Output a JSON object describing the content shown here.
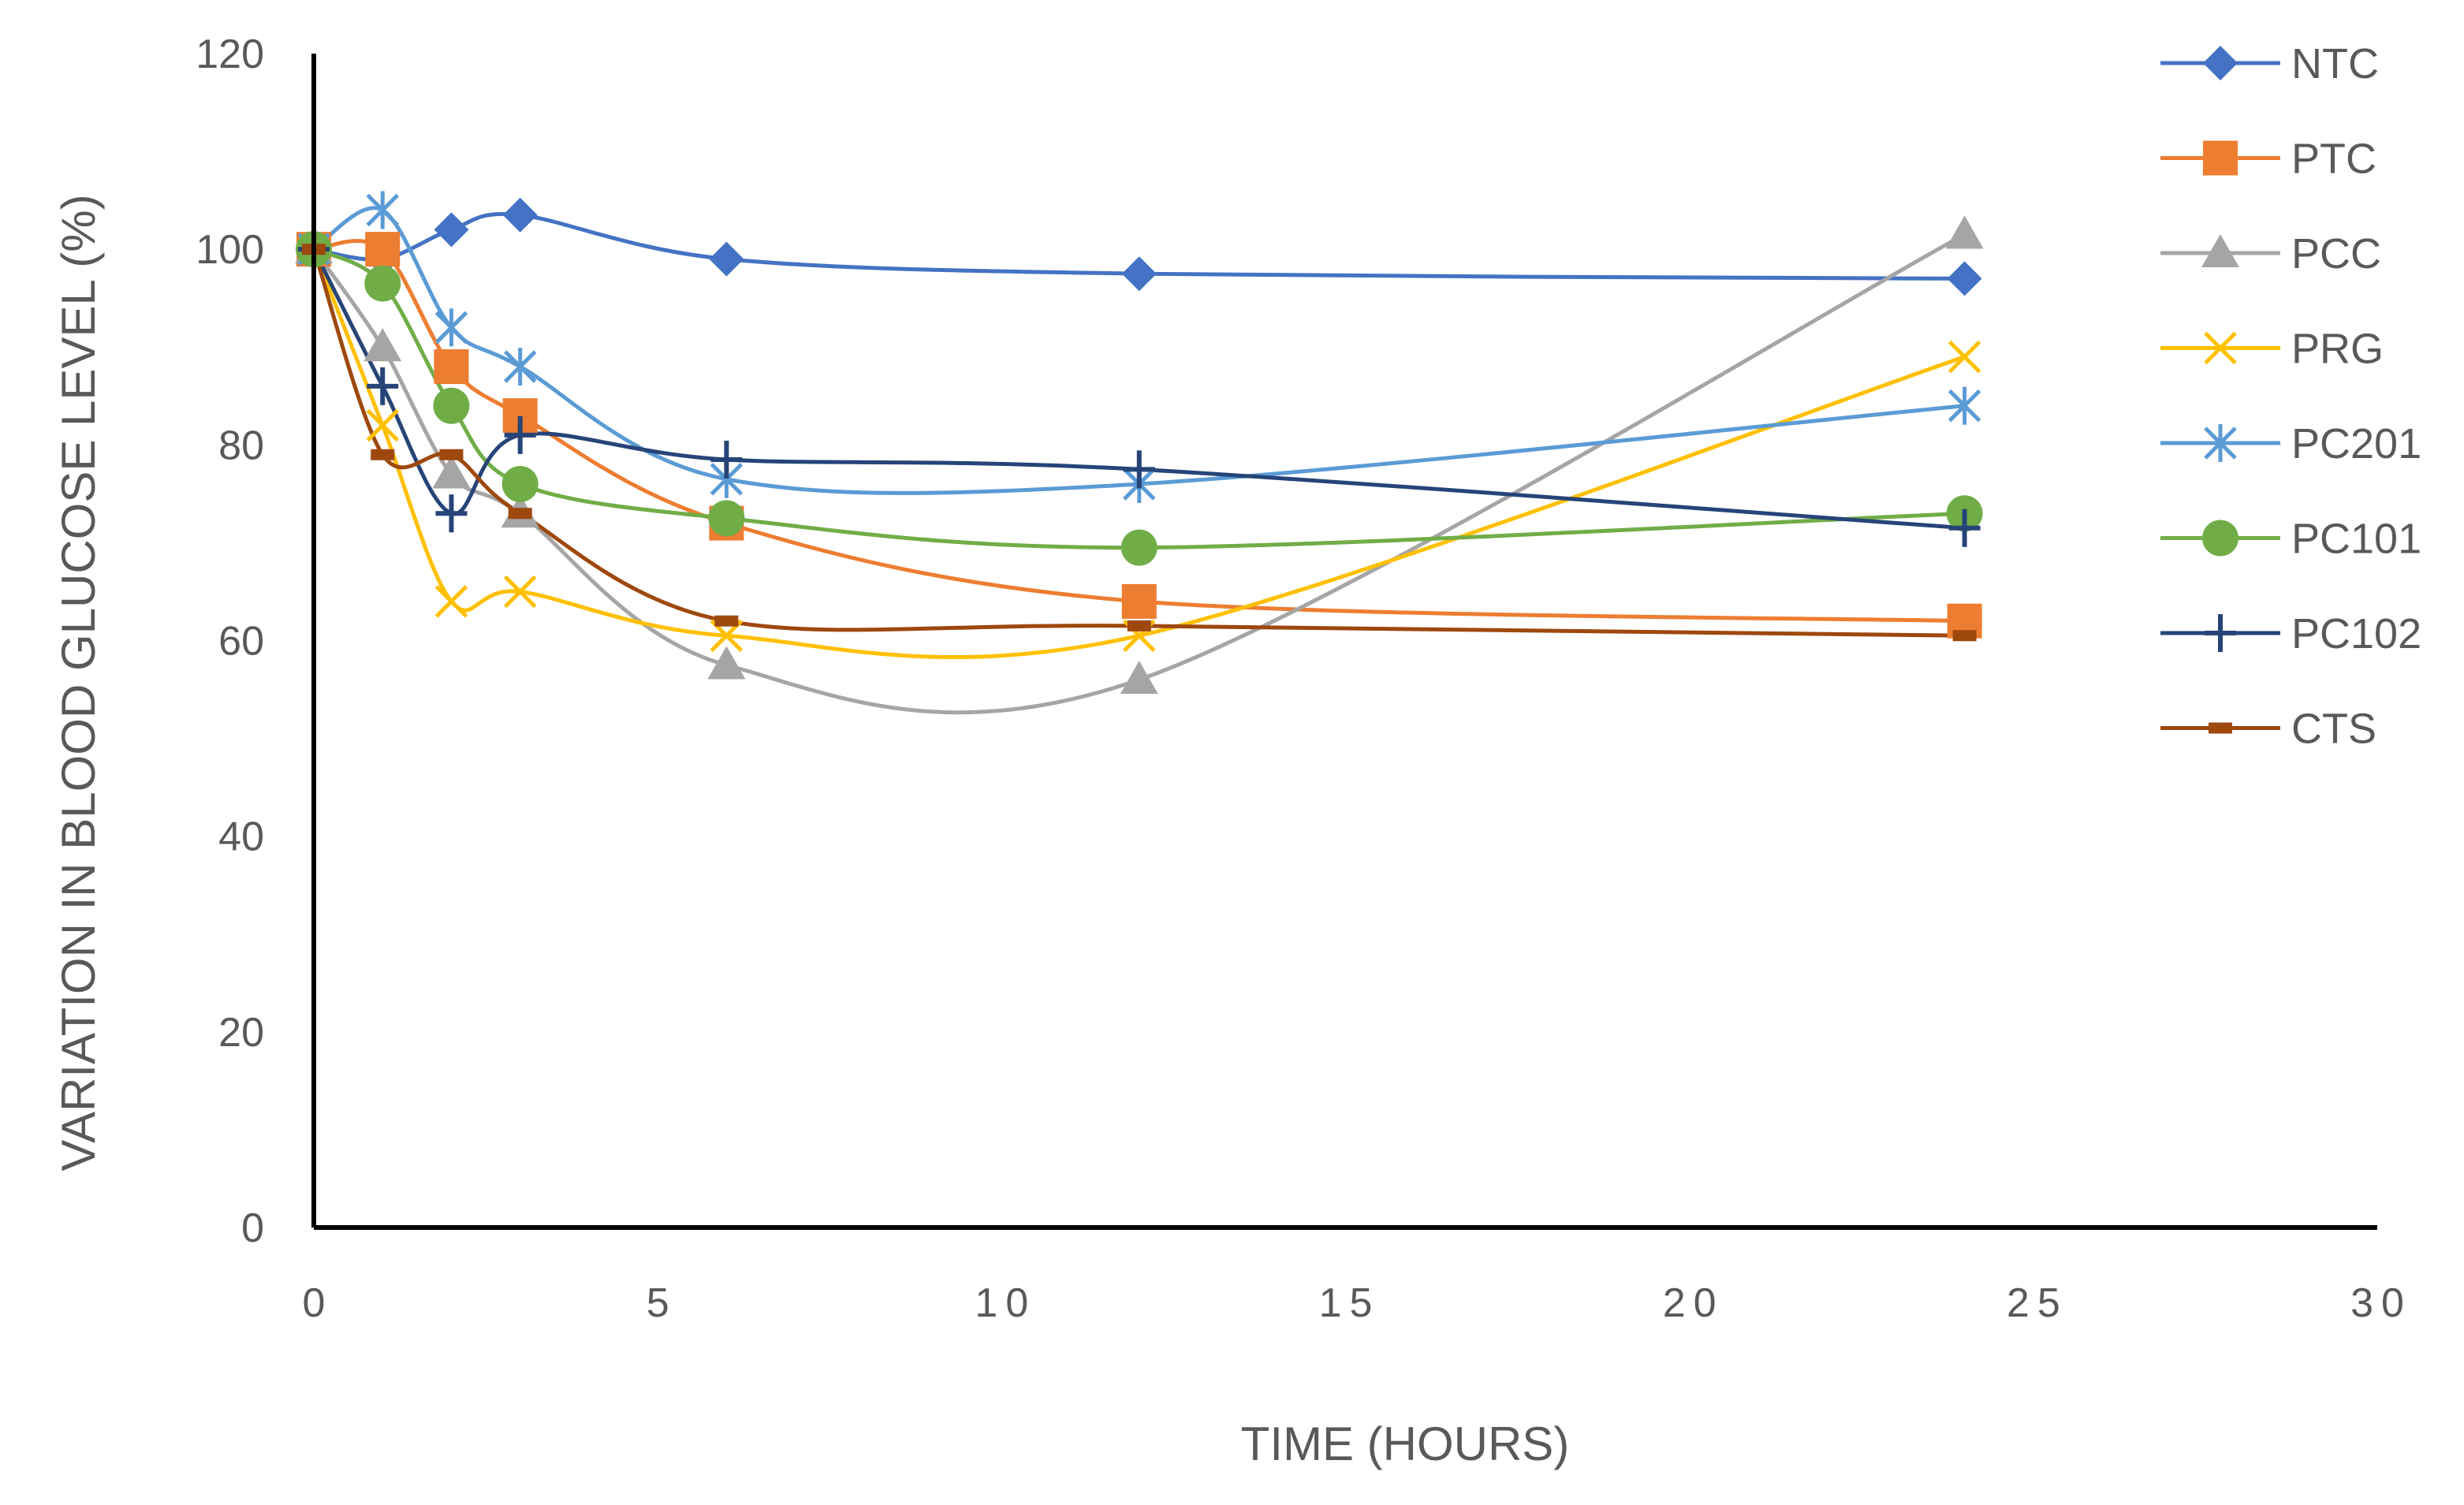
{
  "chart_data": {
    "type": "line",
    "title": "",
    "xlabel": "TIME (HOURS)",
    "ylabel": "VARIATION IN BLOOD GLUCOSE LEVEL (%)",
    "xlim": [
      0,
      30
    ],
    "ylim": [
      0,
      120
    ],
    "xticks": [
      0,
      5,
      10,
      15,
      20,
      25,
      30
    ],
    "yticks": [
      0,
      20,
      40,
      60,
      80,
      100,
      120
    ],
    "grid": false,
    "legend_position": "right",
    "x": [
      0,
      1,
      2,
      3,
      6,
      12,
      24
    ],
    "series": [
      {
        "name": "NTC",
        "color": "#4472C4",
        "marker": "diamond",
        "values": [
          100,
          99,
          102,
          103.5,
          99,
          97.5,
          97
        ]
      },
      {
        "name": "PTC",
        "color": "#ED7D31",
        "marker": "square",
        "values": [
          100,
          100,
          88,
          83,
          72,
          64,
          62
        ]
      },
      {
        "name": "PCC",
        "color": "#A5A5A5",
        "marker": "triangle",
        "values": [
          100,
          90,
          77,
          73,
          57.5,
          56,
          101.5
        ]
      },
      {
        "name": "PRG",
        "color": "#FFC000",
        "marker": "x",
        "values": [
          100,
          82,
          64,
          65,
          60.5,
          60.5,
          89
        ]
      },
      {
        "name": "PC201",
        "color": "#5B9BD5",
        "marker": "asterisk",
        "values": [
          100,
          104,
          92,
          88,
          76.5,
          76,
          84
        ]
      },
      {
        "name": "PC101",
        "color": "#70AD47",
        "marker": "circle",
        "values": [
          100,
          96.5,
          84,
          76,
          72.5,
          69.5,
          73
        ]
      },
      {
        "name": "PC102",
        "color": "#264478",
        "marker": "plus",
        "values": [
          100,
          86,
          73,
          81,
          78.5,
          77.5,
          71.5
        ]
      },
      {
        "name": "CTS",
        "color": "#9E480E",
        "marker": "dash",
        "values": [
          100,
          79,
          79,
          73,
          62,
          61.5,
          60.5
        ]
      }
    ]
  }
}
